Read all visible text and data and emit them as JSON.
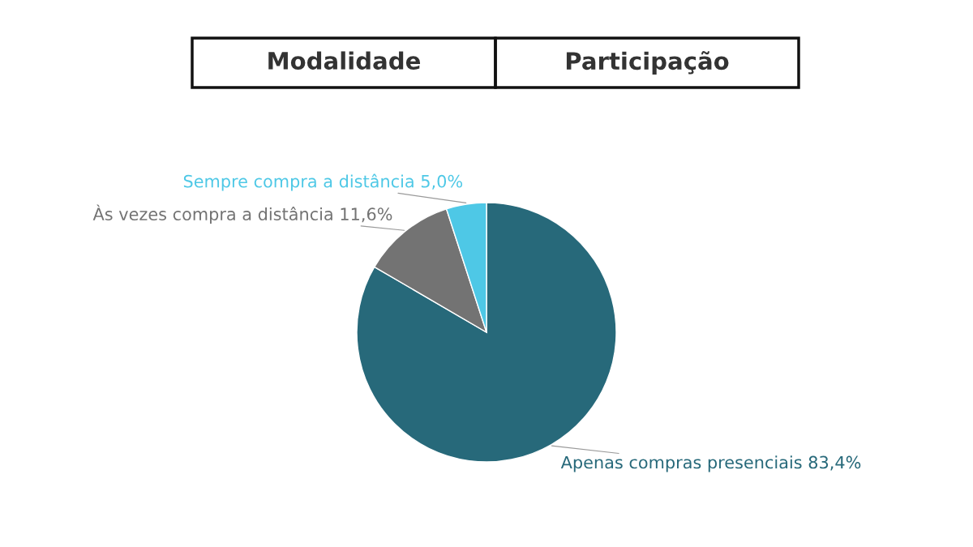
{
  "chart_data": {
    "type": "pie",
    "annotations": [
      "Modalidade",
      "Participação"
    ],
    "categories": [
      "Apenas compras presenciais",
      "Às vezes compra a distância",
      "Sempre compra a distância"
    ],
    "values": [
      83.4,
      11.6,
      5.0
    ],
    "value_labels": [
      "83,4%",
      "11,6%",
      "5,0%"
    ],
    "colors": [
      "#27697a",
      "#737373",
      "#4ec8e6"
    ],
    "legend": false
  }
}
